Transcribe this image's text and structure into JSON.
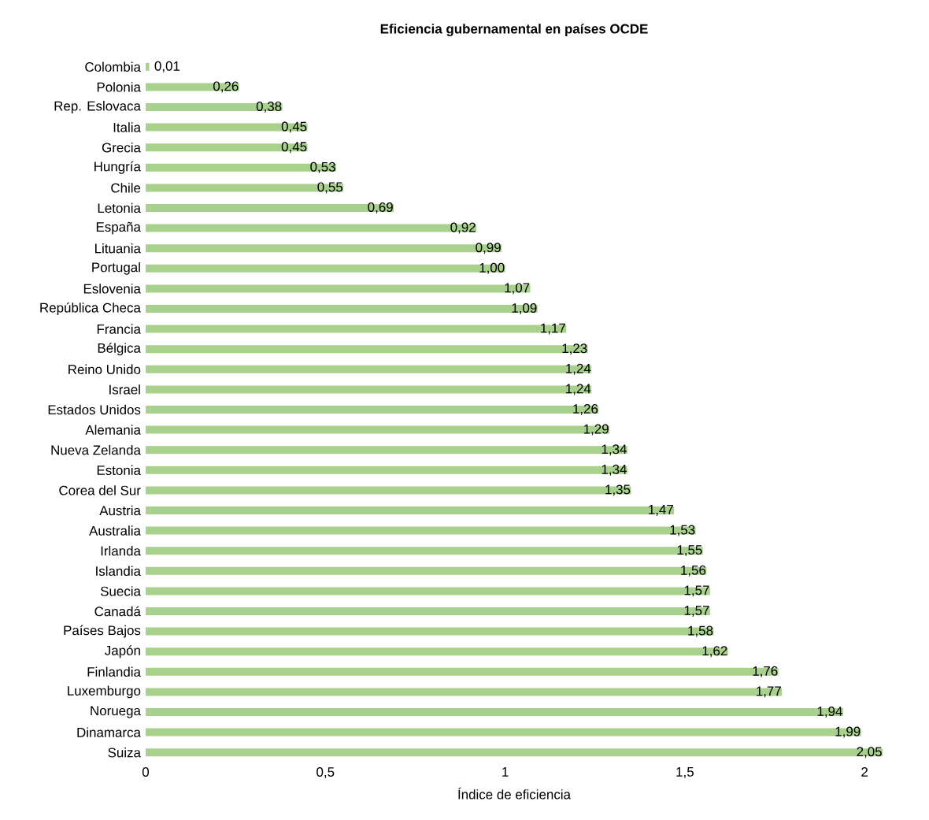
{
  "chart_data": {
    "type": "bar",
    "orientation": "horizontal",
    "title": "Eficiencia gubernamental en países OCDE",
    "xlabel": "Índice de eficiencia",
    "categories": [
      "Colombia",
      "Polonia",
      "Rep. Eslovaca",
      "Italia",
      "Grecia",
      "Hungría",
      "Chile",
      "Letonia",
      "España",
      "Lituania",
      "Portugal",
      "Eslovenia",
      "República Checa",
      "Francia",
      "Bélgica",
      "Reino Unido",
      "Israel",
      "Estados Unidos",
      "Alemania",
      "Nueva Zelanda",
      "Estonia",
      "Corea del Sur",
      "Austria",
      "Australia",
      "Irlanda",
      "Islandia",
      "Suecia",
      "Canadá",
      "Países Bajos",
      "Japón",
      "Finlandia",
      "Luxemburgo",
      "Noruega",
      "Dinamarca",
      "Suiza"
    ],
    "values": [
      0.01,
      0.26,
      0.38,
      0.45,
      0.45,
      0.53,
      0.55,
      0.69,
      0.92,
      0.99,
      1.0,
      1.07,
      1.09,
      1.17,
      1.23,
      1.24,
      1.24,
      1.26,
      1.29,
      1.34,
      1.34,
      1.35,
      1.47,
      1.53,
      1.55,
      1.56,
      1.57,
      1.57,
      1.58,
      1.62,
      1.76,
      1.77,
      1.94,
      1.99,
      2.05
    ],
    "value_labels": [
      "0,01",
      "0,26",
      "0,38",
      "0,45",
      "0,45",
      "0,53",
      "0,55",
      "0,69",
      "0,92",
      "0,99",
      "1,00",
      "1,07",
      "1,09",
      "1,17",
      "1,23",
      "1,24",
      "1,24",
      "1,26",
      "1,29",
      "1,34",
      "1,34",
      "1,35",
      "1,47",
      "1,53",
      "1,55",
      "1,56",
      "1,57",
      "1,57",
      "1,58",
      "1,62",
      "1,76",
      "1,77",
      "1,94",
      "1,99",
      "2,05"
    ],
    "color": "#a9d18e",
    "xlim": [
      0,
      2.05
    ],
    "xticks": [
      0,
      {
        "value": 0.5,
        "label": "0,5"
      },
      1,
      {
        "value": 1.5,
        "label": "1,5"
      },
      2
    ],
    "grid": false
  }
}
